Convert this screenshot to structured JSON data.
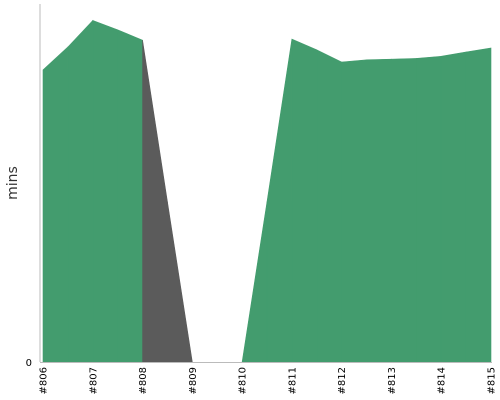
{
  "chart_data": {
    "type": "area",
    "ylabel": "mins",
    "y_tick_labels": [
      "0"
    ],
    "ylim": [
      0,
      100
    ],
    "categories": [
      "#806",
      "#807",
      "#808",
      "#809",
      "#810",
      "#811",
      "#812",
      "#813",
      "#814",
      "#815"
    ],
    "area": [
      {
        "x": 0.0,
        "y": 81.6,
        "color": "green"
      },
      {
        "x": 0.5,
        "y": 88.0,
        "color": "green"
      },
      {
        "x": 1.0,
        "y": 95.4,
        "color": "green"
      },
      {
        "x": 1.5,
        "y": 92.8,
        "color": "green"
      },
      {
        "x": 2.0,
        "y": 89.9,
        "color": "green"
      },
      {
        "x": 2.5,
        "y": 44.8,
        "color": "gray"
      },
      {
        "x": 3.0,
        "y": 0.0,
        "color": "gray"
      },
      {
        "x": 4.0,
        "y": 0.0,
        "color": "gray"
      },
      {
        "x": 4.5,
        "y": 44.8,
        "color": "green"
      },
      {
        "x": 5.0,
        "y": 90.2,
        "color": "green"
      },
      {
        "x": 5.5,
        "y": 87.2,
        "color": "green"
      },
      {
        "x": 6.0,
        "y": 83.8,
        "color": "green"
      },
      {
        "x": 6.5,
        "y": 84.4,
        "color": "green"
      },
      {
        "x": 7.0,
        "y": 84.6,
        "color": "green"
      },
      {
        "x": 7.5,
        "y": 84.8,
        "color": "green"
      },
      {
        "x": 8.0,
        "y": 85.4,
        "color": "green"
      },
      {
        "x": 8.5,
        "y": 86.6,
        "color": "green"
      },
      {
        "x": 9.0,
        "y": 87.7,
        "color": "green"
      }
    ],
    "colors": {
      "green": "#439C6E",
      "gray": "#5B5B5B",
      "axis": "#BBBBBB"
    },
    "grid": false
  }
}
